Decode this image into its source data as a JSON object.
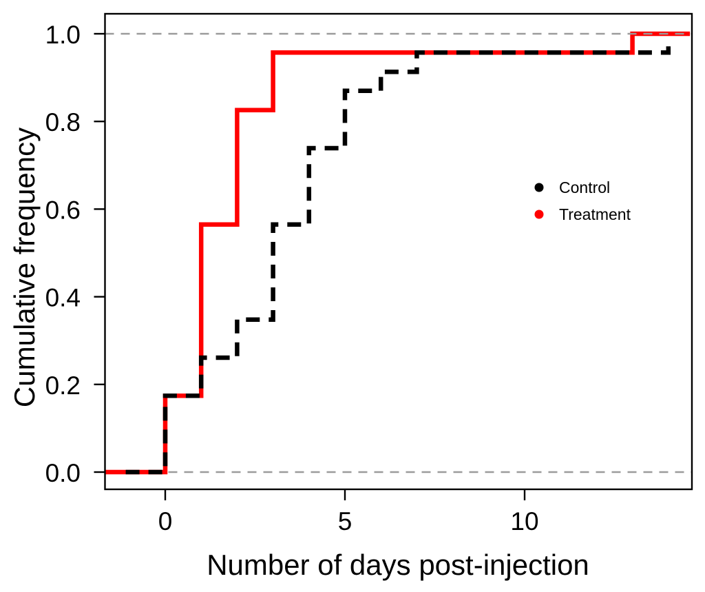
{
  "figure": {
    "background_color": "#FFFFFF",
    "accent_red": "#FF0000",
    "line_black": "#000000",
    "gridline_color": "#9B9B9B"
  },
  "chart_data": {
    "type": "line",
    "subtype": "step_ecdf_cumulative_frequency",
    "title": "",
    "xlabel": "Number of days post-injection",
    "ylabel": "Cumulative frequency",
    "xlim": [
      -1.7,
      14.7
    ],
    "ylim": [
      0.0,
      1.0
    ],
    "grid": "horizontal-dashed-reference-lines-at-0-and-1",
    "x_ticks": [
      {
        "value": 0,
        "label": "0"
      },
      {
        "value": 5,
        "label": "5"
      },
      {
        "value": 10,
        "label": "10"
      }
    ],
    "y_ticks": [
      {
        "value": 0.0,
        "label": "0.0"
      },
      {
        "value": 0.2,
        "label": "0.2"
      },
      {
        "value": 0.4,
        "label": "0.4"
      },
      {
        "value": 0.6,
        "label": "0.6"
      },
      {
        "value": 0.8,
        "label": "0.8"
      },
      {
        "value": 1.0,
        "label": "1.0"
      }
    ],
    "reference_lines_y": [
      0.0,
      1.0
    ],
    "legend": {
      "position": "right-center-inside-plot",
      "entries": [
        {
          "label": "Control",
          "color": "#000000",
          "marker": "filled-dot",
          "line_style": "dashed"
        },
        {
          "label": "Treatment",
          "color": "#FF0000",
          "marker": "filled-dot",
          "line_style": "solid"
        }
      ]
    },
    "series": [
      {
        "name": "Control",
        "color": "#000000",
        "line_style": "dashed",
        "start_x": -1.1,
        "start_y": 0.0,
        "steps": [
          {
            "x": 0,
            "y": 0.174
          },
          {
            "x": 1,
            "y": 0.261
          },
          {
            "x": 2,
            "y": 0.348
          },
          {
            "x": 3,
            "y": 0.565
          },
          {
            "x": 4,
            "y": 0.739
          },
          {
            "x": 5,
            "y": 0.87
          },
          {
            "x": 6,
            "y": 0.913
          },
          {
            "x": 7,
            "y": 0.957
          },
          {
            "x": 14,
            "y": 0.978
          }
        ],
        "end_x": 14
      },
      {
        "name": "Treatment",
        "color": "#FF0000",
        "line_style": "solid",
        "start_x": -1.68,
        "start_y": 0.0,
        "steps": [
          {
            "x": 0,
            "y": 0.174
          },
          {
            "x": 1,
            "y": 0.565
          },
          {
            "x": 2,
            "y": 0.826
          },
          {
            "x": 3,
            "y": 0.957
          },
          {
            "x": 13,
            "y": 1.0
          }
        ],
        "end_x": 14.6
      }
    ]
  }
}
